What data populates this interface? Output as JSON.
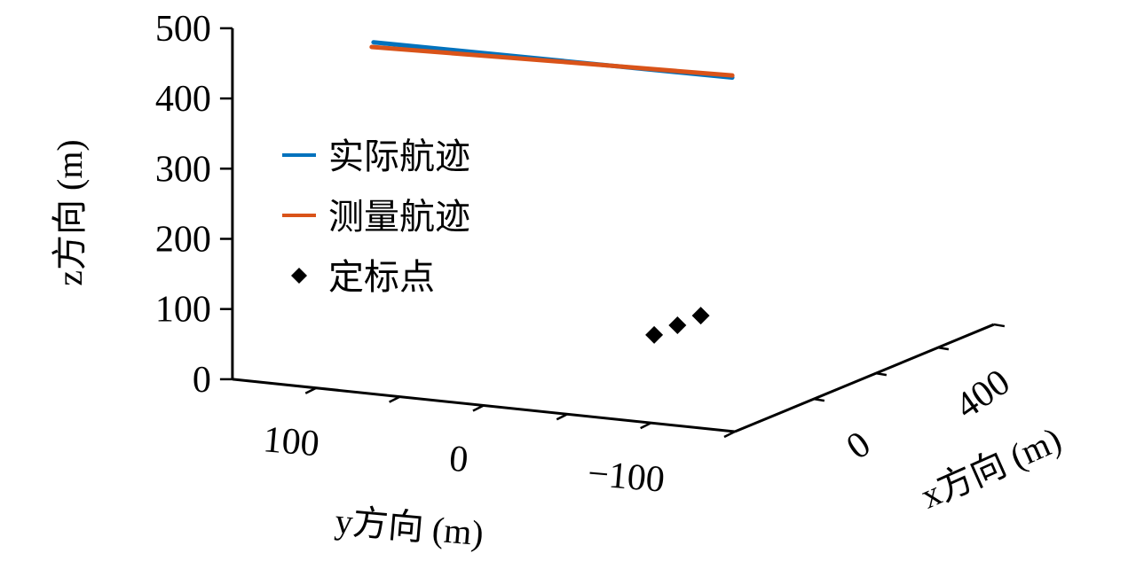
{
  "chart_data": {
    "type": "line3d",
    "axes": {
      "x": {
        "label": "x方向 (m)",
        "range": [
          -254,
          580
        ],
        "ticks": [
          0,
          200,
          400
        ],
        "tick_labels": [
          "0",
          "",
          "400"
        ]
      },
      "y": {
        "label": "y方向 (m)",
        "range": [
          -150,
          150
        ],
        "ticks": [
          100,
          50,
          0,
          -50,
          -100
        ],
        "tick_labels": [
          "100",
          "",
          "0",
          "",
          "−100"
        ]
      },
      "z": {
        "label": "z方向 (m)",
        "range": [
          0,
          500
        ],
        "ticks": [
          0,
          100,
          200,
          300,
          400,
          500
        ],
        "tick_labels": [
          "0",
          "100",
          "200",
          "300",
          "400",
          "500"
        ]
      }
    },
    "grid": false,
    "legend_placement": "left",
    "series": [
      {
        "name": "实际航迹",
        "type": "line",
        "color": "#0072BD",
        "points": [
          [
            300,
            168.5,
            374
          ],
          [
            300,
            60,
            375.5
          ],
          [
            300,
            -45.7,
            377
          ]
        ]
      },
      {
        "name": "测量航迹",
        "type": "line",
        "color": "#D95319",
        "points": [
          [
            300,
            169.6,
            367
          ],
          [
            300,
            60,
            374
          ],
          [
            300,
            -45.7,
            380
          ]
        ]
      },
      {
        "name": "定标点",
        "type": "scatter",
        "marker": "diamond",
        "color": "#000000",
        "points": [
          [
            295,
            0,
            0
          ],
          [
            370,
            0,
            0
          ],
          [
            445,
            0,
            0
          ]
        ]
      }
    ]
  }
}
